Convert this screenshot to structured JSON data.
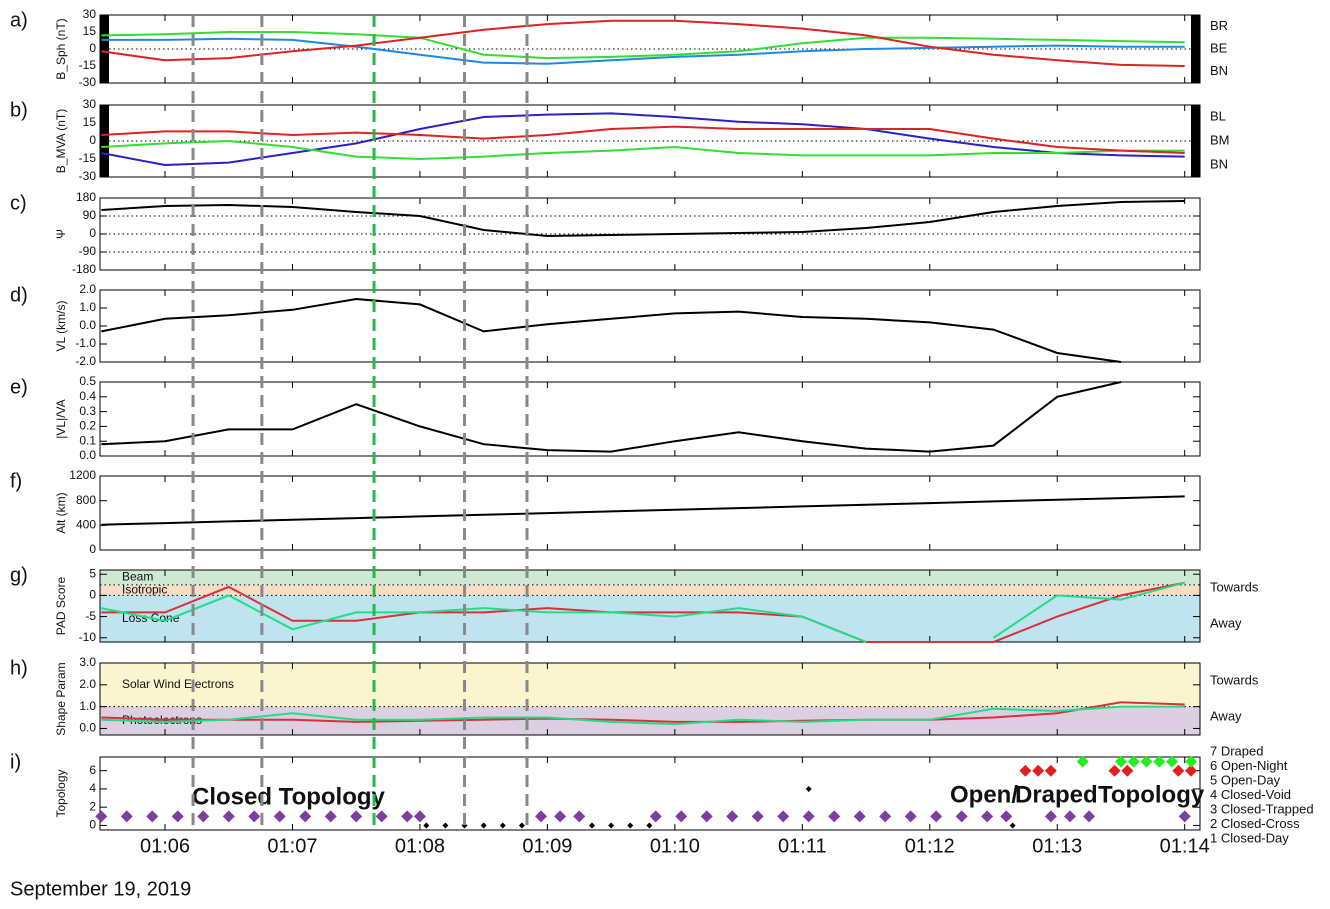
{
  "date": "September 19, 2019",
  "event_times": [
    {
      "x": 6.22,
      "color": "#888888"
    },
    {
      "x": 6.76,
      "color": "#888888"
    },
    {
      "x": 7.64,
      "color": "#22bb44"
    },
    {
      "x": 8.35,
      "color": "#888888"
    },
    {
      "x": 8.84,
      "color": "#888888"
    }
  ],
  "chart_data": [
    {
      "type": "line",
      "panel": "a)",
      "ylabel": "B_Sph (nT)",
      "ylim": [
        -30,
        30
      ],
      "yticks": [
        30,
        15,
        0,
        -15,
        -30
      ],
      "reflines": [
        0
      ],
      "x": [
        5.5,
        6,
        6.5,
        7,
        7.5,
        8,
        8.5,
        9,
        9.5,
        10,
        10.5,
        11,
        11.5,
        12,
        12.5,
        13,
        13.5,
        14
      ],
      "series": [
        {
          "name": "BR",
          "color": "#1e88e5",
          "values": [
            8,
            8,
            9,
            8,
            2,
            -5,
            -12,
            -13,
            -10,
            -7,
            -5,
            -2,
            0,
            1,
            2,
            3,
            2,
            2
          ]
        },
        {
          "name": "BE",
          "color": "#33dd33",
          "values": [
            12,
            13,
            15,
            15,
            13,
            10,
            -5,
            -8,
            -7,
            -5,
            -2,
            5,
            10,
            10,
            9,
            8,
            7,
            6
          ]
        },
        {
          "name": "BN",
          "color": "#dd2222",
          "values": [
            -2,
            -10,
            -8,
            -2,
            3,
            10,
            17,
            22,
            25,
            25,
            22,
            18,
            12,
            2,
            -5,
            -10,
            -14,
            -15
          ]
        }
      ]
    },
    {
      "type": "line",
      "panel": "b)",
      "ylabel": "B_MVA (nT)",
      "ylim": [
        -30,
        30
      ],
      "yticks": [
        30,
        15,
        0,
        -15,
        -30
      ],
      "reflines": [
        0
      ],
      "x": [
        5.5,
        6,
        6.5,
        7,
        7.5,
        8,
        8.5,
        9,
        9.5,
        10,
        10.5,
        11,
        11.5,
        12,
        12.5,
        13,
        13.5,
        14
      ],
      "series": [
        {
          "name": "BL",
          "color": "#2a1fc9",
          "values": [
            -10,
            -20,
            -18,
            -10,
            -2,
            10,
            20,
            22,
            23,
            20,
            16,
            14,
            10,
            2,
            -5,
            -10,
            -12,
            -13
          ]
        },
        {
          "name": "BM",
          "color": "#33dd33",
          "values": [
            -5,
            -2,
            0,
            -5,
            -13,
            -15,
            -13,
            -10,
            -8,
            -5,
            -10,
            -12,
            -12,
            -12,
            -10,
            -10,
            -8,
            -8
          ]
        },
        {
          "name": "BN",
          "color": "#dd2222",
          "values": [
            5,
            8,
            8,
            5,
            7,
            5,
            2,
            5,
            10,
            12,
            10,
            10,
            10,
            10,
            2,
            -5,
            -8,
            -10
          ]
        }
      ]
    },
    {
      "type": "line",
      "panel": "c)",
      "ylabel": "Ψ",
      "ylim": [
        -180,
        180
      ],
      "yticks": [
        180,
        90,
        0,
        -90,
        -180
      ],
      "reflines": [
        90,
        0,
        -90
      ],
      "x": [
        5.5,
        6,
        6.5,
        7,
        7.5,
        8,
        8.5,
        9,
        9.5,
        10,
        10.5,
        11,
        11.5,
        12,
        12.5,
        13,
        13.5,
        14
      ],
      "series": [
        {
          "color": "#000000",
          "values": [
            120,
            140,
            145,
            135,
            110,
            90,
            20,
            -10,
            -5,
            0,
            5,
            10,
            30,
            60,
            110,
            140,
            160,
            165
          ]
        }
      ]
    },
    {
      "type": "line",
      "panel": "d)",
      "ylabel": "VL (km/s)",
      "ylim": [
        -2,
        2
      ],
      "yticks": [
        {
          "value": 2,
          "label": "2.0"
        },
        {
          "value": 1,
          "label": "1.0"
        },
        {
          "value": 0,
          "label": "0.0"
        },
        {
          "value": -1,
          "label": "-1.0"
        },
        {
          "value": -2,
          "label": "-2.0"
        }
      ],
      "x": [
        5.5,
        6,
        6.5,
        7,
        7.5,
        8,
        8.5,
        9,
        9.5,
        10,
        10.5,
        11,
        11.5,
        12,
        12.5,
        13,
        13.5,
        14
      ],
      "series": [
        {
          "color": "#000000",
          "values": [
            -0.3,
            0.4,
            0.6,
            0.9,
            1.5,
            1.2,
            -0.3,
            0.1,
            0.4,
            0.7,
            0.8,
            0.5,
            0.4,
            0.2,
            -0.2,
            -1.5,
            -2.0,
            null
          ]
        }
      ]
    },
    {
      "type": "line",
      "panel": "e)",
      "ylabel": "|VL|/VA",
      "ylim": [
        0,
        0.5
      ],
      "yticks": [
        {
          "value": 0.5,
          "label": "0.5"
        },
        {
          "value": 0.4,
          "label": "0.4"
        },
        {
          "value": 0.3,
          "label": "0.3"
        },
        {
          "value": 0.2,
          "label": "0.2"
        },
        {
          "value": 0.1,
          "label": "0.1"
        },
        {
          "value": 0,
          "label": "0.0"
        }
      ],
      "x": [
        5.5,
        6,
        6.5,
        7,
        7.5,
        8,
        8.5,
        9,
        9.5,
        10,
        10.5,
        11,
        11.5,
        12,
        12.5,
        13,
        13.5,
        14
      ],
      "series": [
        {
          "color": "#000000",
          "values": [
            0.08,
            0.1,
            0.18,
            0.18,
            0.35,
            0.2,
            0.08,
            0.04,
            0.03,
            0.1,
            0.16,
            0.1,
            0.05,
            0.03,
            0.07,
            0.4,
            0.5,
            null
          ]
        }
      ]
    },
    {
      "type": "line",
      "panel": "f)",
      "ylabel": "Alt (km)",
      "ylim": [
        0,
        1200
      ],
      "yticks": [
        1200,
        800,
        400,
        0
      ],
      "x": [
        5.5,
        6,
        6.5,
        7,
        7.5,
        8,
        8.5,
        9,
        9.5,
        10,
        10.5,
        11,
        11.5,
        12,
        12.5,
        13,
        13.5,
        14
      ],
      "series": [
        {
          "color": "#000000",
          "values": [
            410,
            437,
            464,
            491,
            518,
            545,
            572,
            599,
            626,
            653,
            680,
            707,
            734,
            761,
            788,
            815,
            842,
            869
          ]
        }
      ]
    },
    {
      "type": "line",
      "panel": "g)",
      "ylabel": "PAD Score",
      "ylim": [
        -11,
        6
      ],
      "yticks": [
        5,
        0,
        -5,
        -10
      ],
      "reflines": [
        2.5,
        0
      ],
      "bands": [
        {
          "label": "Beam",
          "from": 2.5,
          "to": 6,
          "color": "#cfe8d3"
        },
        {
          "label": "Isotropic",
          "from": 0,
          "to": 2.5,
          "color": "#f7dcc6"
        },
        {
          "label": "Loss Cone",
          "from": -11,
          "to": 0,
          "color": "#bfe3ef"
        }
      ],
      "x": [
        5.5,
        6,
        6.5,
        7,
        7.5,
        8,
        8.5,
        9,
        9.5,
        10,
        10.5,
        11,
        11.5,
        12,
        12.5,
        13,
        13.5,
        14
      ],
      "series": [
        {
          "name": "Towards",
          "color": "#d9303a",
          "values": [
            -4,
            -4,
            2,
            -6,
            -6,
            -4,
            -4,
            -3,
            -4,
            -4,
            -4,
            -5,
            -11,
            -11,
            -11,
            -5,
            0,
            3
          ]
        },
        {
          "name": "Away",
          "color": "#22dd88",
          "values": [
            -3,
            -6,
            0,
            -8,
            -4,
            -4,
            -3,
            -4,
            -4,
            -5,
            -3,
            -5,
            -11,
            null,
            -10,
            0,
            -1,
            3
          ]
        }
      ]
    },
    {
      "type": "line",
      "panel": "h)",
      "ylabel": "Shape Param",
      "ylim": [
        -0.3,
        3
      ],
      "yticks": [
        {
          "value": 3,
          "label": "3.0"
        },
        {
          "value": 2,
          "label": "2.0"
        },
        {
          "value": 1,
          "label": "1.0"
        },
        {
          "value": 0,
          "label": "0.0"
        }
      ],
      "reflines": [
        1
      ],
      "bands": [
        {
          "label": "Solar Wind Electrons",
          "from": 1,
          "to": 3,
          "color": "#fbf5cf"
        },
        {
          "label": "Photoelectrons",
          "from": -0.3,
          "to": 1,
          "color": "#dccfe2"
        }
      ],
      "x": [
        5.5,
        6,
        6.5,
        7,
        7.5,
        8,
        8.5,
        9,
        9.5,
        10,
        10.5,
        11,
        11.5,
        12,
        12.5,
        13,
        13.5,
        14
      ],
      "series": [
        {
          "name": "Towards",
          "color": "#d9303a",
          "values": [
            0.5,
            0.4,
            0.4,
            0.4,
            0.3,
            0.35,
            0.4,
            0.45,
            0.4,
            0.3,
            0.3,
            0.35,
            0.4,
            0.4,
            0.5,
            0.7,
            1.2,
            1.1
          ]
        },
        {
          "name": "Away",
          "color": "#22dd88",
          "values": [
            0.4,
            0.3,
            0.4,
            0.7,
            0.4,
            0.4,
            0.5,
            0.5,
            0.3,
            0.2,
            0.4,
            0.3,
            0.4,
            0.4,
            0.9,
            0.8,
            1.0,
            1.0
          ]
        }
      ]
    },
    {
      "type": "scatter",
      "panel": "i)",
      "ylabel": "Topology",
      "ylim": [
        -0.5,
        7.5
      ],
      "yticks": [
        0,
        2,
        4,
        6
      ],
      "xlim": [
        5.49,
        14.12
      ],
      "xticks": [
        {
          "value": 6,
          "label": "01:06"
        },
        {
          "value": 7,
          "label": "01:07"
        },
        {
          "value": 8,
          "label": "01:08"
        },
        {
          "value": 9,
          "label": "01:09"
        },
        {
          "value": 10,
          "label": "01:10"
        },
        {
          "value": 11,
          "label": "01:11"
        },
        {
          "value": 12,
          "label": "01:12"
        },
        {
          "value": 13,
          "label": "01:13"
        },
        {
          "value": 14,
          "label": "01:14"
        }
      ],
      "category_labels": [
        "7 Draped",
        "6 Open-Night",
        "5 Open-Day",
        "4 Closed-Void",
        "3 Closed-Trapped",
        "2 Closed-Cross",
        "1 Closed-Day"
      ],
      "annotations": [
        {
          "text": "Closed Topology",
          "color": "#7b3fa0"
        },
        {
          "text": "Open/",
          "color": "#e02020"
        },
        {
          "text": "Draped",
          "color": "#22cc22"
        },
        {
          "text": "Topology",
          "color": "#e02020"
        }
      ],
      "series": [
        {
          "color": "#7b3fa0",
          "x": [
            5.5,
            5.7,
            5.9,
            6.1,
            6.3,
            6.5,
            6.7,
            6.9,
            7.1,
            7.3,
            7.5,
            7.7,
            7.9,
            8.0,
            8.95,
            9.1,
            9.25,
            9.85,
            10.05,
            10.25,
            10.45,
            10.65,
            10.85,
            11.05,
            11.25,
            11.45,
            11.65,
            11.85,
            12.05,
            12.25,
            12.45,
            12.6,
            12.95,
            13.1,
            13.25,
            14.0
          ],
          "values": [
            1,
            1,
            1,
            1,
            1,
            1,
            1,
            1,
            1,
            1,
            1,
            1,
            1,
            1,
            1,
            1,
            1,
            1,
            1,
            1,
            1,
            1,
            1,
            1,
            1,
            1,
            1,
            1,
            1,
            1,
            1,
            1,
            1,
            1,
            1,
            1
          ]
        },
        {
          "color": "#000000",
          "x": [
            8.05,
            8.2,
            8.35,
            8.5,
            8.65,
            8.8,
            9.35,
            9.5,
            9.65,
            9.8,
            11.05,
            12.65
          ],
          "values": [
            0,
            0,
            0,
            0,
            0,
            0,
            0,
            0,
            0,
            0,
            4,
            0
          ]
        },
        {
          "color": "#e02020",
          "x": [
            12.75,
            12.85,
            12.95,
            13.45,
            13.55,
            13.95,
            14.05
          ],
          "values": [
            6,
            6,
            6,
            6,
            6,
            6,
            6
          ]
        },
        {
          "color": "#22ee22",
          "x": [
            13.2,
            13.5,
            13.6,
            13.7,
            13.8,
            13.9,
            14.05
          ],
          "values": [
            7,
            7,
            7,
            7,
            7,
            7,
            7
          ]
        }
      ]
    }
  ]
}
